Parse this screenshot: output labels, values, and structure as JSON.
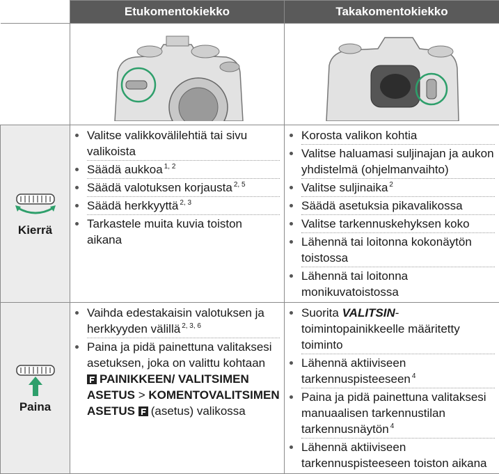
{
  "header": {
    "front": "Etukomentokiekko",
    "rear": "Takakomentokiekko"
  },
  "rows": [
    {
      "label": "Kierrä",
      "front": [
        [
          "Valitse valikkovälilehtiä tai sivu valikoista"
        ],
        [
          "Säädä aukkoa",
          "1, 2"
        ],
        [
          "Säädä valotuksen korjausta",
          "2, 5"
        ],
        [
          "Säädä herkkyyttä",
          "2, 3"
        ],
        [
          "Tarkastele muita kuvia toiston aikana"
        ]
      ],
      "rear": [
        [
          "Korosta valikon kohtia"
        ],
        [
          "Valitse haluamasi suljinajan ja aukon yhdistelmä (ohjelmanvaihto)"
        ],
        [
          "Valitse suljinaika",
          "2"
        ],
        [
          "Säädä asetuksia pikavalikossa"
        ],
        [
          "Valitse tarkennuskehyksen koko"
        ],
        [
          "Lähennä tai loitonna kokonäytön toistossa"
        ],
        [
          "Lähennä tai loitonna monikuvatoistossa"
        ]
      ]
    },
    {
      "label": "Paina",
      "front": [
        [
          "Vaihda edestakaisin valotuksen ja herkkyyden välillä",
          "2, 3, 6"
        ],
        [
          "Paina ja pidä painettuna valitaksesi asetuksen, joka on valittu kohtaan",
          "PAINIKKEEN/ VALITSIMEN ASETUS",
          ">",
          "KOMENTOVALITSIMEN ASETUS",
          "(asetus) valikossa"
        ]
      ],
      "rear": [
        [
          "Suorita",
          "VALITSIN",
          "-toimintopainikkeelle määritetty toiminto"
        ],
        [
          "Lähennä aktiiviseen tarkennuspisteeseen",
          "4"
        ],
        [
          "Paina ja pidä painettuna valitaksesi manuaalisen tarkennustilan tarkennusnäytön",
          "4"
        ],
        [
          "Lähennä aktiiviseen tarkennuspisteeseen toiston aikana"
        ]
      ]
    }
  ]
}
